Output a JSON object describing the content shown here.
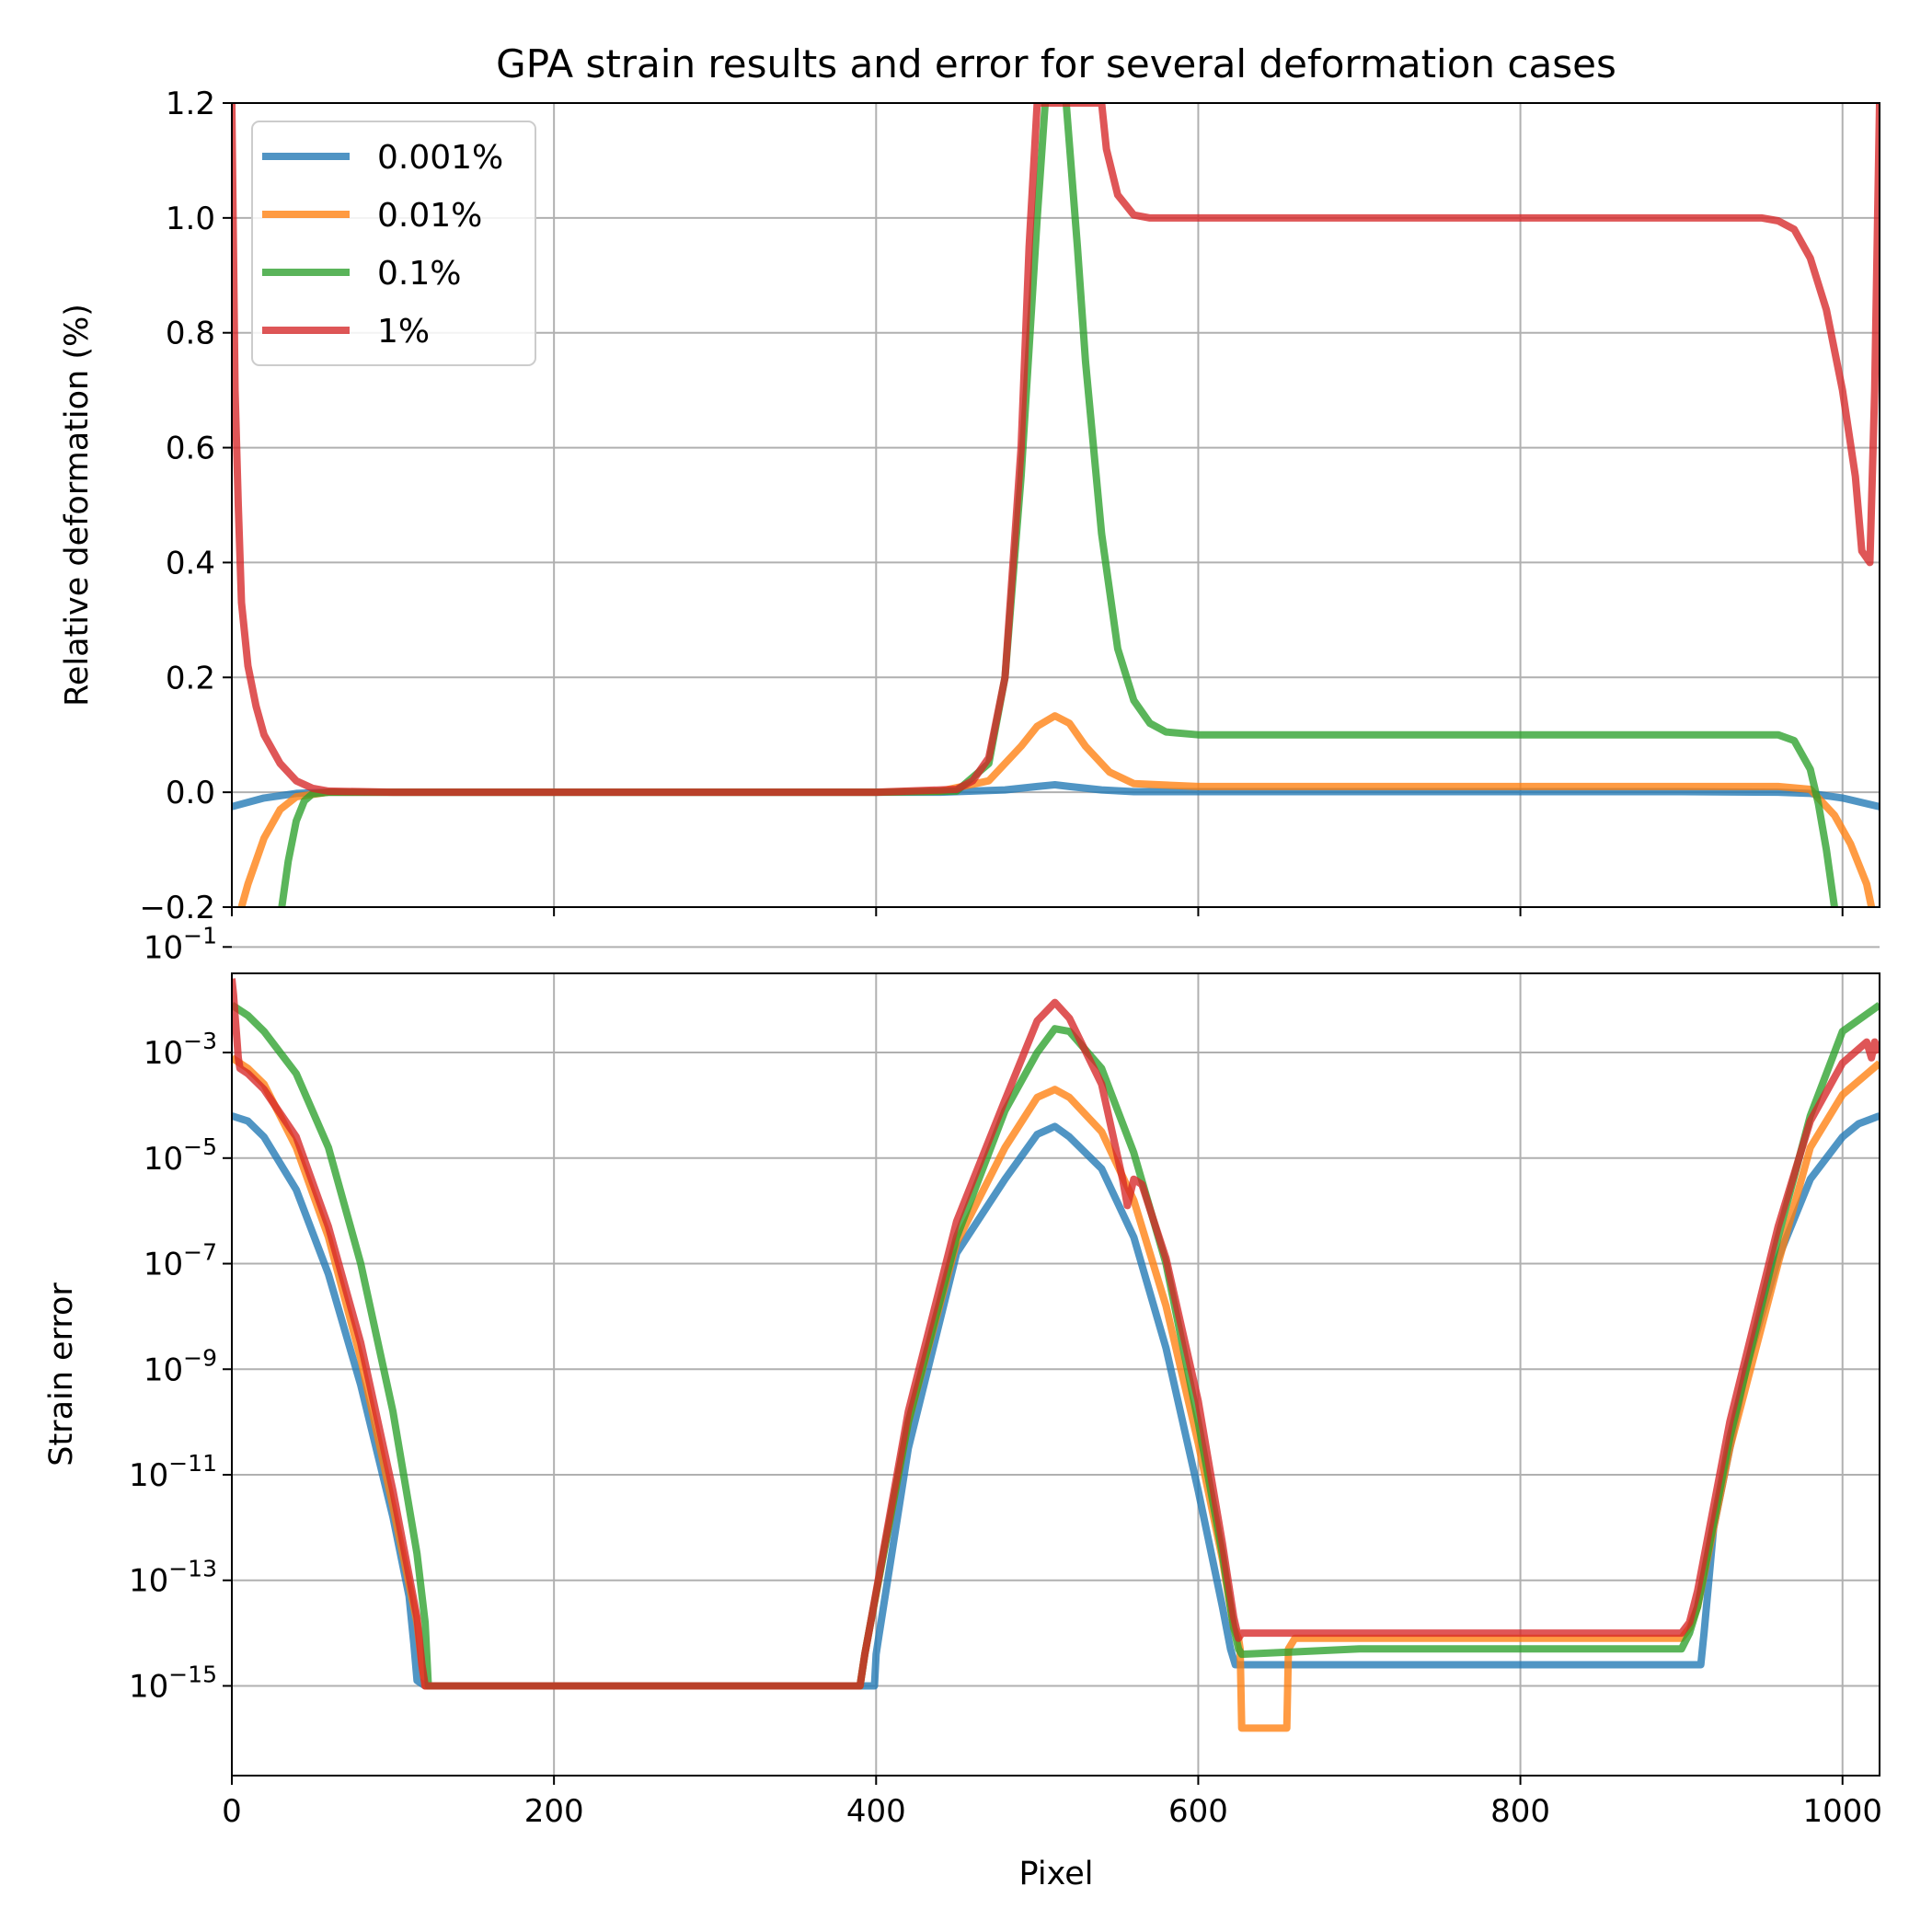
{
  "chart_data": [
    {
      "type": "line",
      "title": "GPA strain results and error for several deformation cases",
      "xlabel": "",
      "ylabel": "Relative deformation (%)",
      "xlim": [
        0,
        1023
      ],
      "ylim": [
        -0.2,
        1.2
      ],
      "y_scale": "linear",
      "grid": true,
      "legend": "upper-left",
      "xticks": [
        0,
        200,
        400,
        600,
        800,
        1000
      ],
      "xtick_labels_shown": false,
      "yticks": [
        -0.2,
        0.0,
        0.2,
        0.4,
        0.6,
        0.8,
        1.0,
        1.2
      ],
      "ytick_labels": [
        "−0.2",
        "0.0",
        "0.2",
        "0.4",
        "0.6",
        "0.8",
        "1.0",
        "1.2"
      ],
      "series": [
        {
          "name": "0.001%",
          "color": "#1f77b4",
          "x": [
            0,
            20,
            40,
            60,
            100,
            200,
            300,
            400,
            440,
            480,
            500,
            511,
            520,
            540,
            560,
            600,
            700,
            800,
            900,
            960,
            980,
            1000,
            1023
          ],
          "y": [
            -0.025,
            -0.01,
            -0.002,
            0.0,
            0.0,
            0.0,
            0.0,
            0.0,
            0.0,
            0.004,
            0.01,
            0.013,
            0.01,
            0.004,
            0.001,
            0.001,
            0.001,
            0.001,
            0.001,
            0.0,
            -0.002,
            -0.01,
            -0.025
          ]
        },
        {
          "name": "0.01%",
          "color": "#ff7f0e",
          "x": [
            6,
            10,
            20,
            30,
            40,
            60,
            100,
            200,
            300,
            400,
            440,
            470,
            490,
            500,
            511,
            520,
            530,
            545,
            560,
            600,
            700,
            800,
            900,
            960,
            980,
            995,
            1005,
            1015,
            1018
          ],
          "y": [
            -0.2,
            -0.16,
            -0.08,
            -0.03,
            -0.008,
            0.0,
            0.0,
            0.0,
            0.0,
            0.0,
            0.002,
            0.02,
            0.08,
            0.115,
            0.133,
            0.12,
            0.08,
            0.035,
            0.015,
            0.01,
            0.01,
            0.01,
            0.01,
            0.01,
            0.005,
            -0.04,
            -0.09,
            -0.16,
            -0.2
          ]
        },
        {
          "name": "0.1%",
          "color": "#2ca02c",
          "x": [
            31,
            35,
            40,
            45,
            50,
            60,
            100,
            200,
            300,
            400,
            450,
            470,
            480,
            490,
            500,
            505,
            511,
            518,
            525,
            530,
            540,
            550,
            560,
            570,
            580,
            600,
            700,
            800,
            900,
            960,
            970,
            980,
            985,
            990,
            995
          ],
          "y": [
            -0.2,
            -0.12,
            -0.05,
            -0.015,
            -0.003,
            0.0,
            0.0,
            0.0,
            0.0,
            0.0,
            0.002,
            0.05,
            0.2,
            0.55,
            1.0,
            1.2,
            1.25,
            1.2,
            0.95,
            0.75,
            0.45,
            0.25,
            0.16,
            0.12,
            0.105,
            0.1,
            0.1,
            0.1,
            0.1,
            0.1,
            0.09,
            0.04,
            -0.02,
            -0.1,
            -0.2
          ]
        },
        {
          "name": "1%",
          "color": "#d62728",
          "x": [
            0,
            2,
            4,
            6,
            10,
            15,
            20,
            30,
            40,
            50,
            60,
            100,
            200,
            300,
            400,
            450,
            460,
            470,
            480,
            490,
            495,
            500,
            540,
            543,
            550,
            560,
            570,
            600,
            700,
            800,
            900,
            950,
            960,
            970,
            980,
            990,
            1000,
            1008,
            1012,
            1017,
            1020,
            1023
          ],
          "y": [
            1.2,
            0.7,
            0.5,
            0.33,
            0.22,
            0.15,
            0.1,
            0.05,
            0.02,
            0.007,
            0.002,
            0.0,
            0.0,
            0.0,
            0.0,
            0.005,
            0.02,
            0.06,
            0.2,
            0.6,
            0.95,
            1.2,
            1.2,
            1.12,
            1.04,
            1.005,
            1.0,
            1.0,
            1.0,
            1.0,
            1.0,
            1.0,
            0.995,
            0.98,
            0.93,
            0.84,
            0.7,
            0.55,
            0.42,
            0.4,
            0.7,
            1.2
          ]
        }
      ]
    },
    {
      "type": "line",
      "title": "",
      "xlabel": "Pixel",
      "ylabel": "Strain error",
      "xlim": [
        0,
        1023
      ],
      "ylim": [
        -16.7,
        -1.5
      ],
      "y_scale": "log",
      "grid": true,
      "legend": "none",
      "xticks": [
        0,
        200,
        400,
        600,
        800,
        1000
      ],
      "xtick_labels": [
        "0",
        "200",
        "400",
        "600",
        "800",
        "1000"
      ],
      "yticks_log10": [
        -1,
        -3,
        -5,
        -7,
        -9,
        -11,
        -13,
        -15
      ],
      "ytick_base": "10",
      "ytick_exponents": [
        "−1",
        "−3",
        "−5",
        "−7",
        "−9",
        "−11",
        "−13",
        "−15"
      ],
      "series": [
        {
          "name": "0.001%",
          "color": "#1f77b4",
          "x": [
            0,
            10,
            20,
            40,
            60,
            80,
            100,
            110,
            113,
            115,
            120,
            200,
            300,
            390,
            399,
            400,
            402,
            420,
            450,
            480,
            500,
            511,
            520,
            540,
            560,
            580,
            600,
            615,
            620,
            623,
            625,
            700,
            800,
            900,
            912,
            914,
            920,
            940,
            960,
            980,
            1000,
            1010,
            1023
          ],
          "y": [
            -4.2,
            -4.3,
            -4.6,
            -5.6,
            -7.2,
            -9.3,
            -11.8,
            -13.3,
            -14.2,
            -14.9,
            -15.0,
            -15.0,
            -15.0,
            -15.0,
            -15.0,
            -14.4,
            -14.0,
            -10.5,
            -6.8,
            -5.4,
            -4.55,
            -4.4,
            -4.6,
            -5.2,
            -6.5,
            -8.6,
            -11.3,
            -13.5,
            -14.3,
            -14.6,
            -14.6,
            -14.6,
            -14.6,
            -14.6,
            -14.6,
            -14.0,
            -12.0,
            -9.0,
            -6.9,
            -5.4,
            -4.6,
            -4.35,
            -4.2
          ]
        },
        {
          "name": "0.01%",
          "color": "#ff7f0e",
          "x": [
            0,
            10,
            20,
            40,
            60,
            80,
            100,
            115,
            118,
            120,
            200,
            300,
            390,
            393,
            396,
            420,
            450,
            480,
            500,
            511,
            520,
            540,
            560,
            580,
            600,
            615,
            622,
            625,
            626,
            627,
            655,
            656,
            660,
            700,
            800,
            900,
            905,
            910,
            930,
            960,
            980,
            1000,
            1023
          ],
          "y": [
            -3.1,
            -3.3,
            -3.6,
            -4.8,
            -6.5,
            -8.8,
            -11.6,
            -13.8,
            -14.6,
            -15.0,
            -15.0,
            -15.0,
            -15.0,
            -14.4,
            -13.9,
            -10.0,
            -6.6,
            -4.8,
            -3.85,
            -3.7,
            -3.85,
            -4.5,
            -5.8,
            -7.8,
            -10.4,
            -12.6,
            -13.9,
            -14.1,
            -14.3,
            -15.8,
            -15.8,
            -14.3,
            -14.1,
            -14.1,
            -14.1,
            -14.1,
            -13.9,
            -13.5,
            -10.5,
            -7.0,
            -4.8,
            -3.8,
            -3.2
          ]
        },
        {
          "name": "0.1%",
          "color": "#2ca02c",
          "x": [
            0,
            10,
            20,
            40,
            60,
            80,
            100,
            115,
            120,
            122,
            200,
            300,
            390,
            393,
            396,
            420,
            450,
            480,
            500,
            511,
            520,
            540,
            560,
            580,
            600,
            615,
            622,
            625,
            627,
            700,
            800,
            900,
            905,
            910,
            930,
            960,
            980,
            1000,
            1023
          ],
          "y": [
            -2.1,
            -2.3,
            -2.6,
            -3.4,
            -4.8,
            -7.0,
            -9.8,
            -12.5,
            -13.8,
            -15.0,
            -15.0,
            -15.0,
            -15.0,
            -14.4,
            -13.9,
            -10.0,
            -6.5,
            -4.1,
            -3.0,
            -2.55,
            -2.6,
            -3.3,
            -4.9,
            -7.0,
            -10.0,
            -12.5,
            -13.9,
            -14.3,
            -14.4,
            -14.3,
            -14.3,
            -14.3,
            -14.0,
            -13.5,
            -10.3,
            -6.5,
            -4.2,
            -2.6,
            -2.1
          ]
        },
        {
          "name": "1%",
          "color": "#d62728",
          "x": [
            0,
            1,
            2,
            3,
            4,
            5,
            10,
            20,
            40,
            60,
            80,
            100,
            115,
            118,
            120,
            200,
            300,
            390,
            393,
            396,
            420,
            450,
            480,
            500,
            511,
            520,
            540,
            553,
            556,
            560,
            565,
            580,
            600,
            615,
            622,
            625,
            627,
            700,
            800,
            900,
            905,
            910,
            930,
            960,
            980,
            1000,
            1015,
            1018,
            1020,
            1023
          ],
          "y": [
            -1.6,
            -1.9,
            -2.3,
            -2.7,
            -3.1,
            -3.3,
            -3.4,
            -3.7,
            -4.6,
            -6.3,
            -8.5,
            -11.3,
            -13.7,
            -14.6,
            -15.0,
            -15.0,
            -15.0,
            -15.0,
            -14.4,
            -13.9,
            -9.8,
            -6.2,
            -3.9,
            -2.4,
            -2.05,
            -2.35,
            -3.6,
            -5.4,
            -5.9,
            -5.4,
            -5.5,
            -6.9,
            -9.6,
            -12.3,
            -13.7,
            -14.1,
            -14.0,
            -14.0,
            -14.0,
            -14.0,
            -13.8,
            -13.2,
            -10.0,
            -6.3,
            -4.3,
            -3.2,
            -2.8,
            -3.1,
            -2.8,
            -3.0
          ]
        }
      ]
    }
  ]
}
